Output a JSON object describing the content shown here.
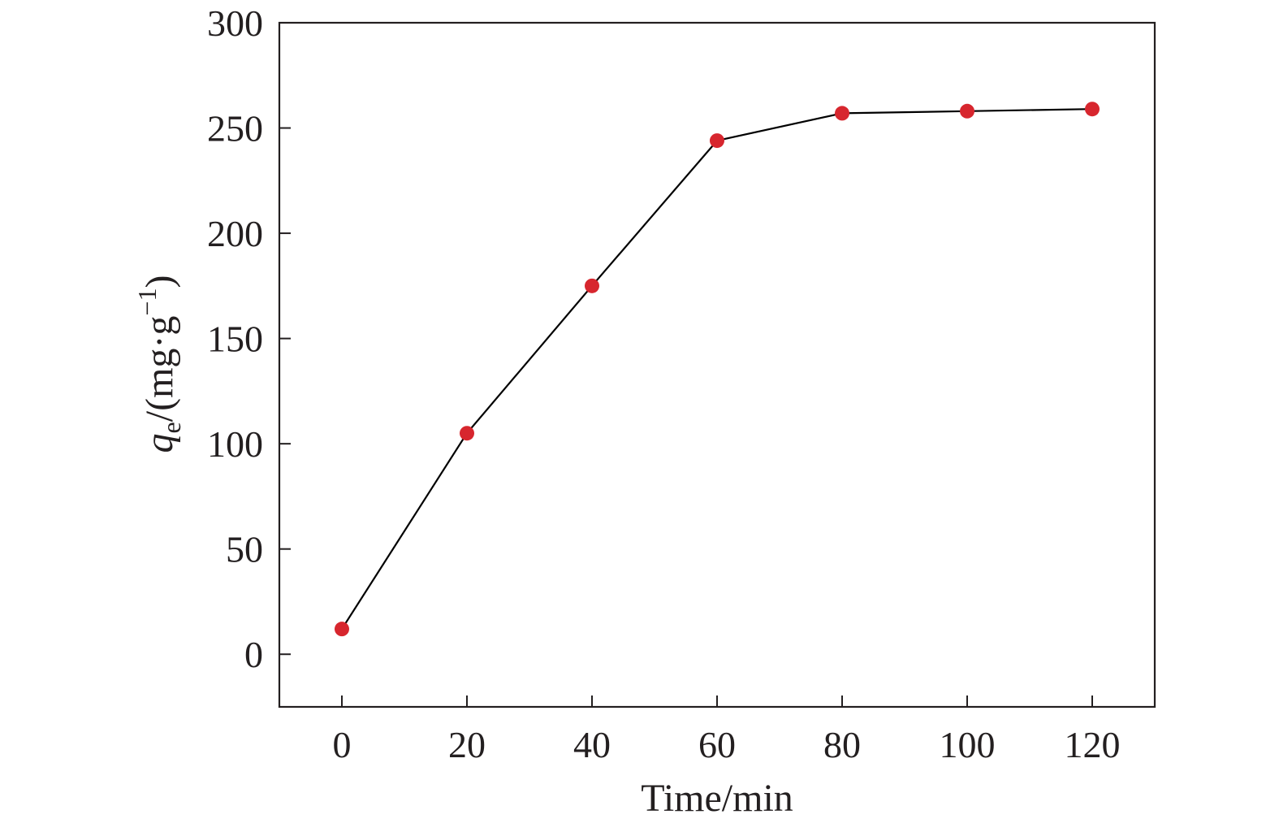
{
  "chart_data": {
    "type": "line",
    "title": "",
    "xlabel": "Time/min",
    "ylabel": {
      "symbol": "q",
      "subscript": "e",
      "unit_text": "/(mg·g",
      "superscript": "−1",
      "close": ")"
    },
    "xlim": [
      -10,
      130
    ],
    "ylim": [
      -25,
      300
    ],
    "x_ticks": [
      0,
      20,
      40,
      60,
      80,
      100,
      120
    ],
    "x_tick_labels": [
      "0",
      "20",
      "40",
      "60",
      "80",
      "100",
      "120"
    ],
    "y_ticks": [
      0,
      50,
      100,
      150,
      200,
      250,
      300
    ],
    "y_tick_labels": [
      "0",
      "50",
      "100",
      "150",
      "200",
      "250",
      "300"
    ],
    "grid": false,
    "legend": "none",
    "series": [
      {
        "x": [
          0,
          20,
          40,
          60,
          80,
          100,
          120
        ],
        "y": [
          12,
          105,
          175,
          244,
          257,
          258,
          259
        ],
        "line_color": "#000000",
        "marker_color": "#d7262e"
      }
    ]
  }
}
